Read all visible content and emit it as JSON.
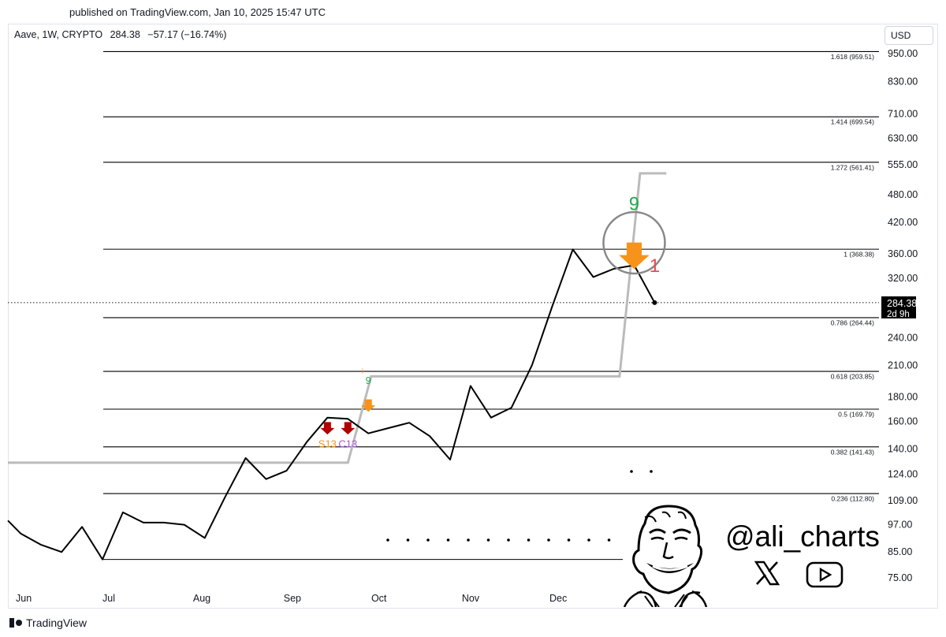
{
  "header": {
    "published": "published on TradingView.com, Jan 10, 2025 15:47 UTC"
  },
  "legend": {
    "symbol": "Aave, 1W, CRYPTO",
    "price": "284.38",
    "change": "−57.17 (−16.74%)"
  },
  "currency": "USD",
  "brand": {
    "name": "TradingView"
  },
  "watermark": {
    "handle": "@ali_charts",
    "icons": [
      "x-logo-icon",
      "youtube-icon",
      "cartoon-face-avatar"
    ]
  },
  "chart_data": {
    "type": "line",
    "y_scale": "log",
    "y_ticks": [
      "950.00",
      "830.00",
      "710.00",
      "630.00",
      "555.00",
      "480.00",
      "420.00",
      "360.00",
      "320.00",
      "240.00",
      "210.00",
      "180.00",
      "160.00",
      "140.00",
      "124.00",
      "109.00",
      "97.00",
      "85.00",
      "75.00"
    ],
    "x_ticks": [
      "Jun",
      "Jul",
      "Aug",
      "Sep",
      "Oct",
      "Nov",
      "Dec"
    ],
    "colors": {
      "price": "#000000",
      "step": "#bbbbbb",
      "fib": "#000000",
      "td_green": "#22ab52",
      "td_orange": "#f7931a",
      "td_red": "#e74c5b",
      "arrow_red": "#b00000",
      "purple": "#b350e0"
    },
    "price_series": [
      {
        "date": "2024-05-27",
        "close": 99
      },
      {
        "date": "2024-06-03",
        "close": 93
      },
      {
        "date": "2024-06-10",
        "close": 88
      },
      {
        "date": "2024-06-17",
        "close": 85
      },
      {
        "date": "2024-06-24",
        "close": 96
      },
      {
        "date": "2024-07-01",
        "close": 82
      },
      {
        "date": "2024-07-08",
        "close": 103
      },
      {
        "date": "2024-07-15",
        "close": 98
      },
      {
        "date": "2024-07-22",
        "close": 98
      },
      {
        "date": "2024-07-29",
        "close": 97
      },
      {
        "date": "2024-08-05",
        "close": 91
      },
      {
        "date": "2024-08-12",
        "close": 111
      },
      {
        "date": "2024-08-19",
        "close": 134
      },
      {
        "date": "2024-08-26",
        "close": 121
      },
      {
        "date": "2024-09-02",
        "close": 126
      },
      {
        "date": "2024-09-09",
        "close": 145
      },
      {
        "date": "2024-09-16",
        "close": 163
      },
      {
        "date": "2024-09-23",
        "close": 162
      },
      {
        "date": "2024-09-30",
        "close": 151
      },
      {
        "date": "2024-10-07",
        "close": 155
      },
      {
        "date": "2024-10-14",
        "close": 159
      },
      {
        "date": "2024-10-21",
        "close": 149
      },
      {
        "date": "2024-10-28",
        "close": 133
      },
      {
        "date": "2024-11-04",
        "close": 190
      },
      {
        "date": "2024-11-11",
        "close": 163
      },
      {
        "date": "2024-11-18",
        "close": 171
      },
      {
        "date": "2024-11-25",
        "close": 210
      },
      {
        "date": "2024-12-02",
        "close": 280
      },
      {
        "date": "2024-12-09",
        "close": 368
      },
      {
        "date": "2024-12-16",
        "close": 322
      },
      {
        "date": "2024-12-23",
        "close": 335
      },
      {
        "date": "2024-12-30",
        "close": 341
      },
      {
        "date": "2025-01-06",
        "close": 284.38
      }
    ],
    "step_series": [
      {
        "date": "2024-05-27",
        "value": 131
      },
      {
        "date": "2024-09-16",
        "value": 131
      },
      {
        "date": "2024-09-23",
        "value": 131
      },
      {
        "date": "2024-10-01",
        "value": 199
      },
      {
        "date": "2024-12-25",
        "value": 199
      },
      {
        "date": "2025-01-01",
        "value": 532
      },
      {
        "date": "2025-01-10",
        "value": 532
      }
    ],
    "fib_levels": [
      {
        "ratio": "1.618",
        "value": 959.51,
        "label": "1.618 (959.51)"
      },
      {
        "ratio": "1.414",
        "value": 699.54,
        "label": "1.414 (699.54)"
      },
      {
        "ratio": "1.272",
        "value": 561.41,
        "label": "1.272 (561.41)"
      },
      {
        "ratio": "1",
        "value": 368.38,
        "label": "1 (368.38)"
      },
      {
        "ratio": "0.786",
        "value": 264.44,
        "label": "0.786 (264.44)"
      },
      {
        "ratio": "0.618",
        "value": 203.85,
        "label": "0.618 (203.85)"
      },
      {
        "ratio": "0.5",
        "value": 169.79,
        "label": "0.5 (169.79)"
      },
      {
        "ratio": "0.382",
        "value": 141.43,
        "label": "0.382 (141.43)"
      },
      {
        "ratio": "0.236",
        "value": 112.8,
        "label": "0.236 (112.80)"
      },
      {
        "ratio": "0",
        "value": 82.0,
        "label": ""
      }
    ],
    "current": {
      "price": "284.38",
      "countdown": "2d 9h"
    },
    "annotations": [
      {
        "text": "9",
        "date": "2024-12-30",
        "price": 445,
        "color": "td_green",
        "size": "large"
      },
      {
        "text": "1",
        "date": "2025-01-06",
        "price": 330,
        "color": "td_red",
        "size": "large"
      },
      {
        "text": "9",
        "date": "2024-09-30",
        "price": 192,
        "color": "td_green",
        "size": "small"
      },
      {
        "text": "i",
        "date": "2024-09-28",
        "price": 202,
        "color": "td_orange",
        "size": "tiny"
      },
      {
        "text": "S13",
        "date": "2024-09-16",
        "price": 141,
        "color": "td_orange",
        "size": "small"
      },
      {
        "text": "C13",
        "date": "2024-09-23",
        "price": 141,
        "color": "purple",
        "size": "small"
      }
    ],
    "arrows": [
      {
        "date": "2024-12-30",
        "price": 358,
        "color": "td_orange",
        "size": "large"
      },
      {
        "date": "2024-09-30",
        "price": 173,
        "color": "td_orange",
        "size": "small"
      },
      {
        "date": "2024-09-16",
        "price": 155,
        "color": "arrow_red",
        "size": "small"
      },
      {
        "date": "2024-09-23",
        "price": 155,
        "color": "arrow_red",
        "size": "small"
      }
    ],
    "highlight_circle": {
      "date": "2024-12-30",
      "price": 380
    }
  }
}
